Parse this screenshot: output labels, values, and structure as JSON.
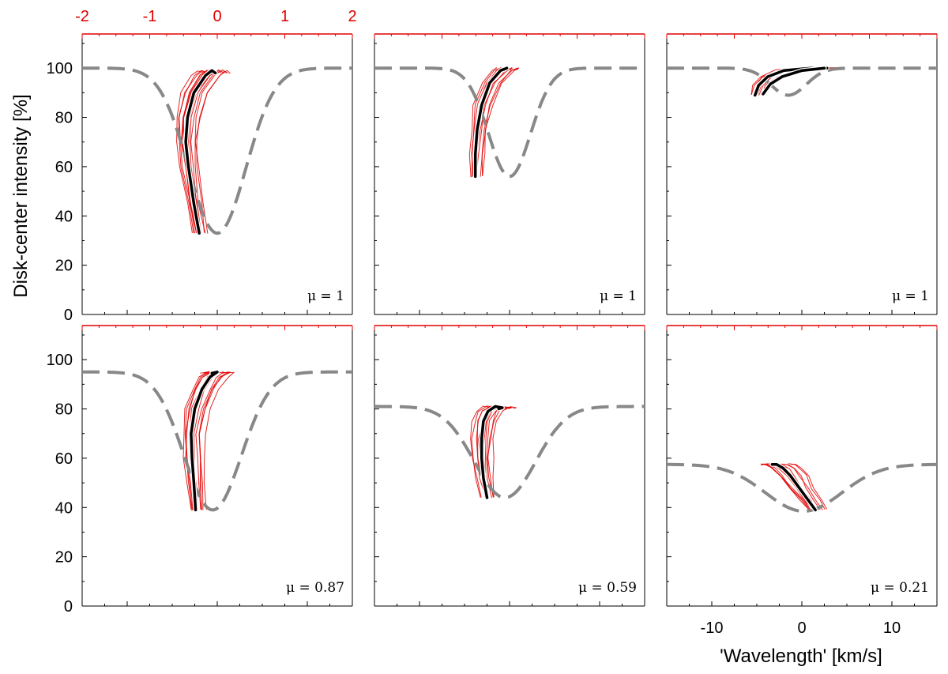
{
  "chart_data": {
    "type": "line",
    "ylabel": "Disk-center intensity [%]",
    "xlabel": "'Wavelength' [km/s]",
    "ylim": [
      0,
      110
    ],
    "xlim": [
      -15,
      15
    ],
    "top_axis": {
      "range": [
        -2,
        2
      ],
      "ticks": [
        "-2",
        "-1",
        "0",
        "1",
        "2"
      ],
      "color": "#e00000"
    },
    "y_ticks": [
      "0",
      "20",
      "40",
      "60",
      "80",
      "100"
    ],
    "x_ticks": [
      "-10",
      "0",
      "10"
    ],
    "x_tick_values": [
      -10,
      0,
      10
    ],
    "colors": {
      "profile": "#888888",
      "bisector": "#000000",
      "bisector_outline": "#ffffff",
      "spread": "#e00000",
      "top_axis": "#e00000"
    },
    "panels": [
      {
        "mu_label": "μ = 1",
        "profile": {
          "continuum": 100,
          "core": 33,
          "center": 0,
          "halfwidth": 4.5
        },
        "bisectors": [
          [
            [
              -2.0,
              33
            ],
            [
              -2.6,
              45
            ],
            [
              -3.2,
              60
            ],
            [
              -3.5,
              70
            ],
            [
              -3.3,
              80
            ],
            [
              -2.6,
              90
            ],
            [
              -1.3,
              97
            ],
            [
              -0.6,
              99
            ],
            [
              -0.2,
              98
            ]
          ]
        ],
        "spread": {
          "min_shift": -1.3,
          "max_shift": 1.4,
          "count": 14
        }
      },
      {
        "mu_label": "μ = 1",
        "profile": {
          "continuum": 100,
          "core": 56,
          "center": 0,
          "halfwidth": 3.3
        },
        "bisectors": [
          [
            [
              -3.8,
              56
            ],
            [
              -3.8,
              65
            ],
            [
              -3.6,
              75
            ],
            [
              -3.1,
              85
            ],
            [
              -2.2,
              94
            ],
            [
              -1.0,
              99
            ],
            [
              -0.3,
              100
            ],
            [
              -0.6,
              99.5
            ]
          ]
        ],
        "spread": {
          "min_shift": -0.8,
          "max_shift": 1.2,
          "count": 12
        }
      },
      {
        "mu_label": "μ = 1",
        "profile": {
          "continuum": 100,
          "core": 89,
          "center": -1.5,
          "halfwidth": 2.8
        },
        "bisectors": [
          [
            [
              -5.2,
              89
            ],
            [
              -4.8,
              93
            ],
            [
              -3.8,
              96.5
            ],
            [
              -2.0,
              99
            ],
            [
              1.0,
              100
            ],
            [
              2.8,
              100
            ]
          ],
          [
            [
              -4.3,
              89.5
            ],
            [
              -3.5,
              93.5
            ],
            [
              -2.2,
              96.5
            ],
            [
              0.0,
              99
            ],
            [
              2.5,
              100
            ]
          ]
        ],
        "spread": {
          "min_shift": -0.8,
          "max_shift": 1.0,
          "count": 10
        }
      },
      {
        "mu_label": "μ = 0.87",
        "profile": {
          "continuum": 95,
          "core": 39,
          "center": -0.5,
          "halfwidth": 4.5
        },
        "bisectors": [
          [
            [
              -2.4,
              39
            ],
            [
              -2.6,
              50
            ],
            [
              -2.8,
              60
            ],
            [
              -2.9,
              70
            ],
            [
              -2.5,
              80
            ],
            [
              -1.7,
              88
            ],
            [
              -0.8,
              93
            ],
            [
              0.0,
              95
            ],
            [
              -0.6,
              94.5
            ]
          ]
        ],
        "spread": {
          "min_shift": -1.0,
          "max_shift": 1.4,
          "count": 14
        }
      },
      {
        "mu_label": "μ = 0.59",
        "profile": {
          "continuum": 81,
          "core": 44,
          "center": -0.5,
          "halfwidth": 4.8
        },
        "bisectors": [
          [
            [
              -2.5,
              44
            ],
            [
              -2.9,
              52
            ],
            [
              -3.1,
              60
            ],
            [
              -3.1,
              68
            ],
            [
              -2.9,
              75
            ],
            [
              -2.4,
              79
            ],
            [
              -1.6,
              81
            ],
            [
              -0.8,
              80.5
            ],
            [
              -1.2,
              80
            ]
          ]
        ],
        "spread": {
          "min_shift": -0.9,
          "max_shift": 1.2,
          "count": 13
        }
      },
      {
        "mu_label": "μ = 0.21",
        "profile": {
          "continuum": 57.5,
          "core": 38.5,
          "center": 0.2,
          "halfwidth": 6.0
        },
        "bisectors": [
          [
            [
              1.5,
              39
            ],
            [
              0.7,
              43
            ],
            [
              -0.3,
              48
            ],
            [
              -1.3,
              53
            ],
            [
              -2.1,
              56
            ],
            [
              -2.8,
              57.5
            ],
            [
              -3.3,
              57.5
            ]
          ]
        ],
        "spread": {
          "min_shift": -1.3,
          "max_shift": 1.6,
          "count": 14
        }
      }
    ]
  }
}
